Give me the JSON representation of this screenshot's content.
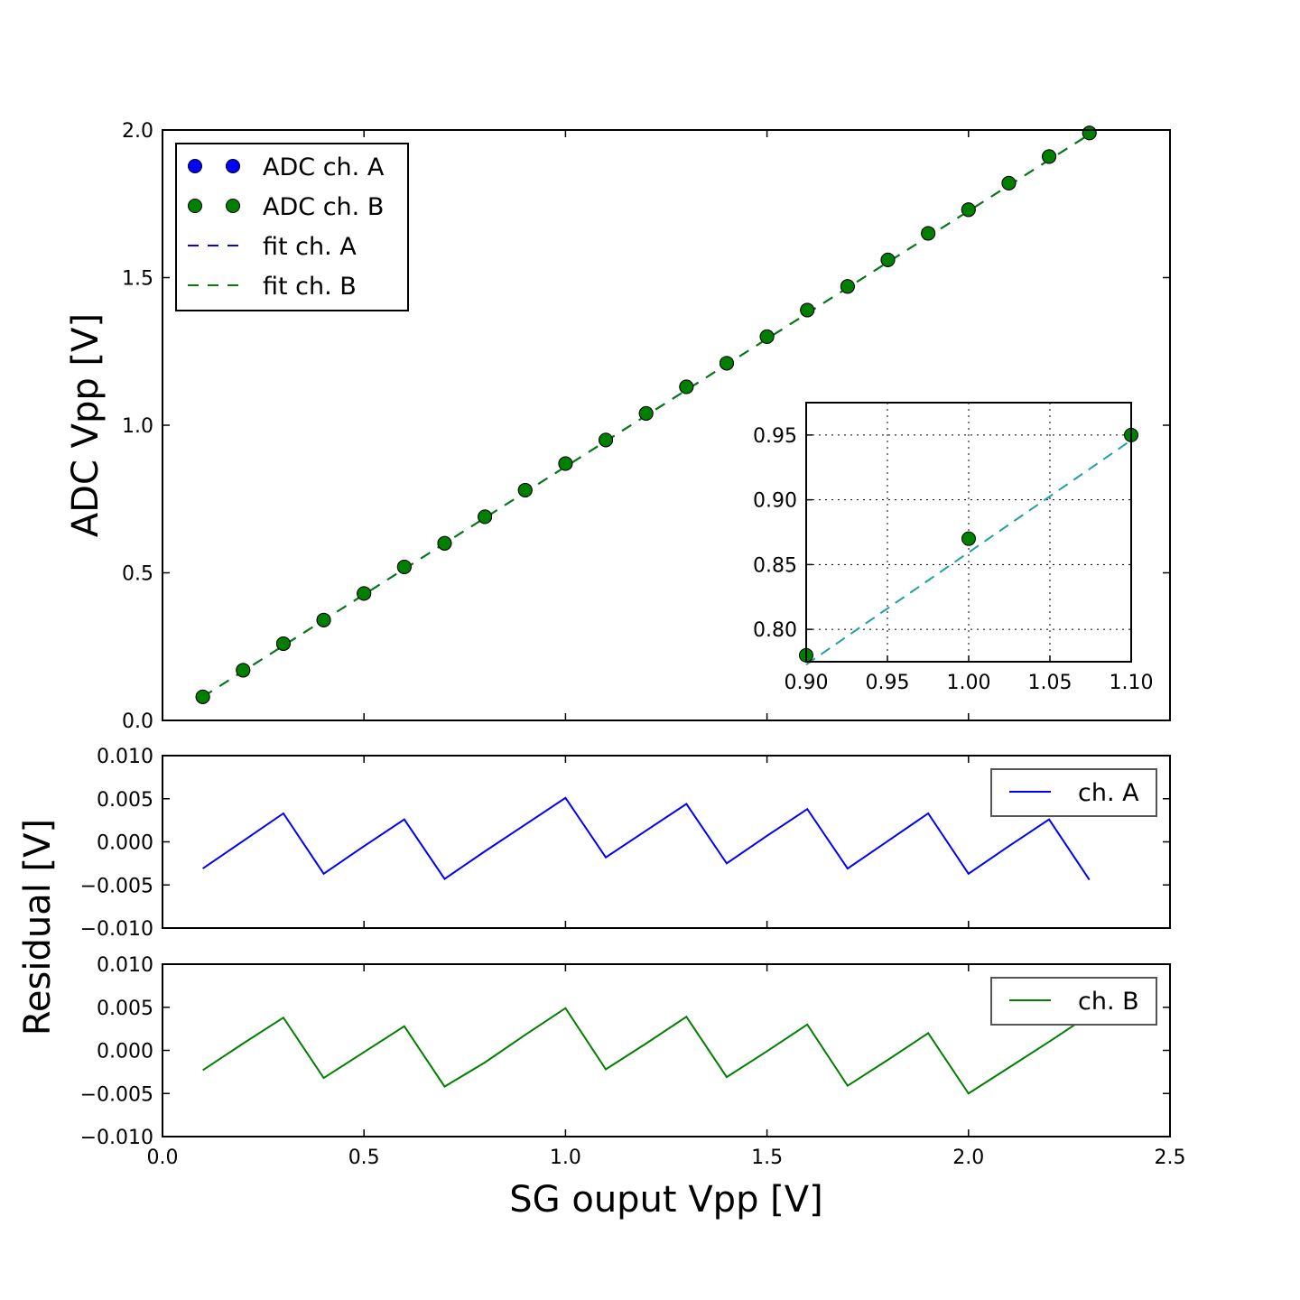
{
  "chart_data": [
    {
      "type": "scatter",
      "panel": "main",
      "ylabel": "ADC Vpp [V]",
      "xlim": [
        0.0,
        2.5
      ],
      "ylim": [
        0.0,
        2.0
      ],
      "xticks": [
        "0.0",
        "0.5",
        "1.0",
        "1.5",
        "2.0",
        "2.5"
      ],
      "yticks": [
        "0.0",
        "0.5",
        "1.0",
        "1.5",
        "2.0"
      ],
      "grid": false,
      "legend_placement": "upper-left",
      "x": [
        0.1,
        0.2,
        0.3,
        0.4,
        0.5,
        0.6,
        0.7,
        0.8,
        0.9,
        1.0,
        1.1,
        1.2,
        1.3,
        1.4,
        1.5,
        1.6,
        1.7,
        1.8,
        1.9,
        2.0,
        2.1,
        2.2,
        2.3
      ],
      "series": [
        {
          "name": "ADC ch. A",
          "kind": "points",
          "color": "#0000ff",
          "values": [
            0.08,
            0.17,
            0.26,
            0.34,
            0.43,
            0.52,
            0.6,
            0.69,
            0.78,
            0.87,
            0.95,
            1.04,
            1.13,
            1.21,
            1.3,
            1.39,
            1.47,
            1.56,
            1.65,
            1.73,
            1.82,
            1.91,
            1.99
          ]
        },
        {
          "name": "ADC ch. B",
          "kind": "points",
          "color": "#007f00",
          "values": [
            0.08,
            0.17,
            0.26,
            0.34,
            0.43,
            0.52,
            0.6,
            0.69,
            0.78,
            0.87,
            0.95,
            1.04,
            1.13,
            1.21,
            1.3,
            1.39,
            1.47,
            1.56,
            1.65,
            1.73,
            1.82,
            1.91,
            1.99
          ]
        },
        {
          "name": "fit ch. A",
          "kind": "dashed-line",
          "color": "#0000ff",
          "slope": 0.866,
          "intercept": -0.0066
        },
        {
          "name": "fit ch. B",
          "kind": "dashed-line",
          "color": "#007f00",
          "slope": 0.866,
          "intercept": -0.0066
        }
      ]
    },
    {
      "type": "scatter",
      "panel": "inset",
      "xlim": [
        0.9,
        1.1
      ],
      "ylim": [
        0.775,
        0.975
      ],
      "xticks": [
        "0.90",
        "0.95",
        "1.00",
        "1.05",
        "1.10"
      ],
      "yticks": [
        "0.80",
        "0.85",
        "0.90",
        "0.95"
      ],
      "grid": true,
      "x": [
        0.9,
        1.0,
        1.1
      ],
      "values": [
        0.78,
        0.87,
        0.95
      ],
      "point_color": "#007f00",
      "fit_color": "#20a0a0",
      "slope": 0.866,
      "intercept": -0.0066
    },
    {
      "type": "line",
      "panel": "residual-a",
      "ylim": [
        -0.01,
        0.01
      ],
      "yticks": [
        "0.010",
        "0.005",
        "0.000",
        "−0.005",
        "−0.010"
      ],
      "legend_placement": "upper-right",
      "x": [
        0.1,
        0.2,
        0.3,
        0.4,
        0.5,
        0.6,
        0.7,
        0.8,
        0.9,
        1.0,
        1.1,
        1.2,
        1.3,
        1.4,
        1.5,
        1.6,
        1.7,
        1.8,
        1.9,
        2.0,
        2.1,
        2.2,
        2.3
      ],
      "series": [
        {
          "name": "ch. A",
          "color": "#0000ff",
          "values": [
            -0.0031,
            0.0001,
            0.0033,
            -0.0037,
            -0.0005,
            0.0026,
            -0.0043,
            -0.0011,
            0.002,
            0.0051,
            -0.0018,
            0.0013,
            0.0044,
            -0.0025,
            0.0007,
            0.0038,
            -0.0031,
            0.0001,
            0.0033,
            -0.0037,
            -0.0005,
            0.0026,
            -0.0044
          ]
        }
      ]
    },
    {
      "type": "line",
      "panel": "residual-b",
      "ylim": [
        -0.01,
        0.01
      ],
      "yticks": [
        "0.010",
        "0.005",
        "0.000",
        "−0.005",
        "−0.010"
      ],
      "xticks": [
        "0.0",
        "0.5",
        "1.0",
        "1.5",
        "2.0",
        "2.5"
      ],
      "legend_placement": "upper-right",
      "x": [
        0.1,
        0.2,
        0.3,
        0.4,
        0.5,
        0.6,
        0.7,
        0.8,
        0.9,
        1.0,
        1.1,
        1.2,
        1.3,
        1.4,
        1.5,
        1.6,
        1.7,
        1.8,
        1.9,
        2.0,
        2.1,
        2.2,
        2.3
      ],
      "series": [
        {
          "name": "ch. B",
          "color": "#007f00",
          "values": [
            -0.0023,
            0.0008,
            0.0038,
            -0.0032,
            -0.0002,
            0.0028,
            -0.0042,
            -0.0014,
            0.0018,
            0.0049,
            -0.0022,
            0.0008,
            0.0039,
            -0.0031,
            -0.0001,
            0.003,
            -0.0041,
            -0.0011,
            0.002,
            -0.005,
            -0.002,
            0.001,
            0.0041
          ]
        }
      ]
    }
  ],
  "labels": {
    "xlabel": "SG ouput Vpp [V]",
    "ylabel_main": "ADC Vpp [V]",
    "ylabel_residual": "Residual [V]"
  }
}
